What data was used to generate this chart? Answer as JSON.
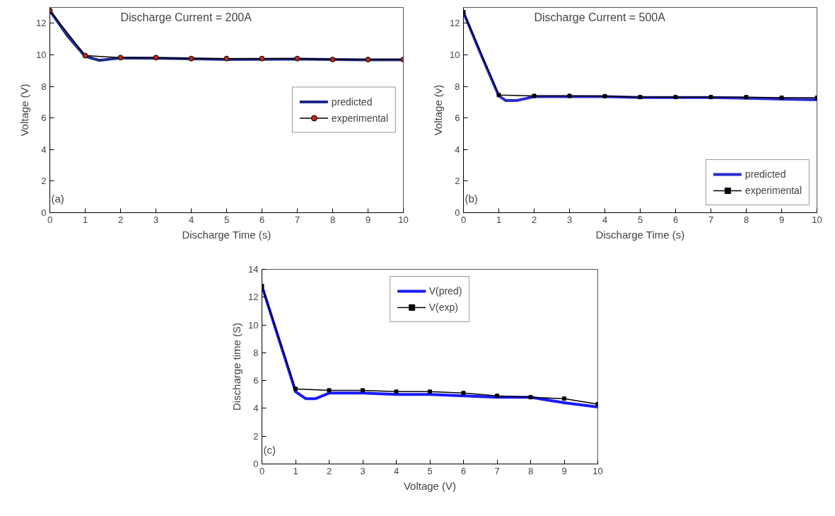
{
  "chart_data": [
    {
      "type": "line",
      "title": "Discharge Current = 200A",
      "xlabel": "Discharge Time (s)",
      "ylabel": "Voltage (V)",
      "annotations": [
        "(a)"
      ],
      "xlim": [
        0,
        10
      ],
      "ylim": [
        0,
        13
      ],
      "xticks": [
        0,
        1,
        2,
        3,
        4,
        5,
        6,
        7,
        8,
        9,
        10
      ],
      "yticks": [
        0,
        2,
        4,
        6,
        8,
        10,
        12
      ],
      "grid": false,
      "legend": "right",
      "series": [
        {
          "name": "predicted",
          "color": "#1f2a8c",
          "marker": "none",
          "x": [
            0,
            0.5,
            1,
            1.4,
            2,
            3,
            4,
            5,
            6,
            7,
            8,
            9,
            10
          ],
          "values": [
            12.8,
            11.2,
            9.9,
            9.65,
            9.8,
            9.78,
            9.75,
            9.7,
            9.72,
            9.73,
            9.7,
            9.68,
            9.68
          ]
        },
        {
          "name": "experimental",
          "color": "#000000",
          "marker": "circle",
          "x": [
            0,
            1,
            2,
            3,
            4,
            5,
            6,
            7,
            8,
            9,
            10
          ],
          "values": [
            12.8,
            9.95,
            9.82,
            9.82,
            9.76,
            9.76,
            9.76,
            9.76,
            9.7,
            9.7,
            9.7
          ]
        }
      ]
    },
    {
      "type": "line",
      "title": "Discharge Current = 500A",
      "xlabel": "Discharge Time (s)",
      "ylabel": "Voltage (v)",
      "annotations": [
        "(b)"
      ],
      "xlim": [
        0,
        10
      ],
      "ylim": [
        0,
        13
      ],
      "xticks": [
        0,
        1,
        2,
        3,
        4,
        5,
        6,
        7,
        8,
        9,
        10
      ],
      "yticks": [
        0,
        2,
        4,
        6,
        8,
        10,
        12
      ],
      "grid": false,
      "legend": "bottom right",
      "series": [
        {
          "name": "predicted",
          "color": "#2b2bd0",
          "marker": "none",
          "x": [
            0,
            0.5,
            1,
            1.2,
            1.5,
            2,
            3,
            4,
            5,
            6,
            7,
            8,
            9,
            10
          ],
          "values": [
            12.7,
            10,
            7.4,
            7.1,
            7.1,
            7.35,
            7.35,
            7.35,
            7.3,
            7.3,
            7.3,
            7.25,
            7.2,
            7.15
          ]
        },
        {
          "name": "experimental",
          "color": "#000000",
          "marker": "square",
          "x": [
            0,
            1,
            2,
            3,
            4,
            5,
            6,
            7,
            8,
            9,
            10
          ],
          "values": [
            12.7,
            7.45,
            7.4,
            7.4,
            7.38,
            7.32,
            7.32,
            7.32,
            7.32,
            7.28,
            7.28
          ]
        }
      ]
    },
    {
      "type": "line",
      "xlabel": "Voltage (V)",
      "ylabel": "Discharge time (S)",
      "annotations": [
        "(c)"
      ],
      "xlim": [
        0,
        10
      ],
      "ylim": [
        0,
        14
      ],
      "xticks": [
        0,
        1,
        2,
        3,
        4,
        5,
        6,
        7,
        8,
        9,
        10
      ],
      "yticks": [
        0,
        2,
        4,
        6,
        8,
        10,
        12,
        14
      ],
      "grid": false,
      "legend": "top",
      "series": [
        {
          "name": "V(pred)",
          "color": "#1a1aff",
          "marker": "none",
          "x": [
            0,
            0.5,
            0.7,
            1,
            1.3,
            1.6,
            2,
            3,
            4,
            5,
            6,
            7,
            8,
            9,
            10
          ],
          "values": [
            12.8,
            9,
            7.5,
            5.2,
            4.7,
            4.7,
            5.1,
            5.1,
            5,
            5,
            4.9,
            4.8,
            4.8,
            4.4,
            4.1
          ]
        },
        {
          "name": "V(exp)",
          "color": "#000000",
          "marker": "square",
          "x": [
            0,
            1,
            2,
            3,
            4,
            5,
            6,
            7,
            8,
            9,
            10
          ],
          "values": [
            12.8,
            5.4,
            5.3,
            5.3,
            5.2,
            5.2,
            5.1,
            4.9,
            4.8,
            4.7,
            4.3
          ]
        }
      ]
    }
  ]
}
